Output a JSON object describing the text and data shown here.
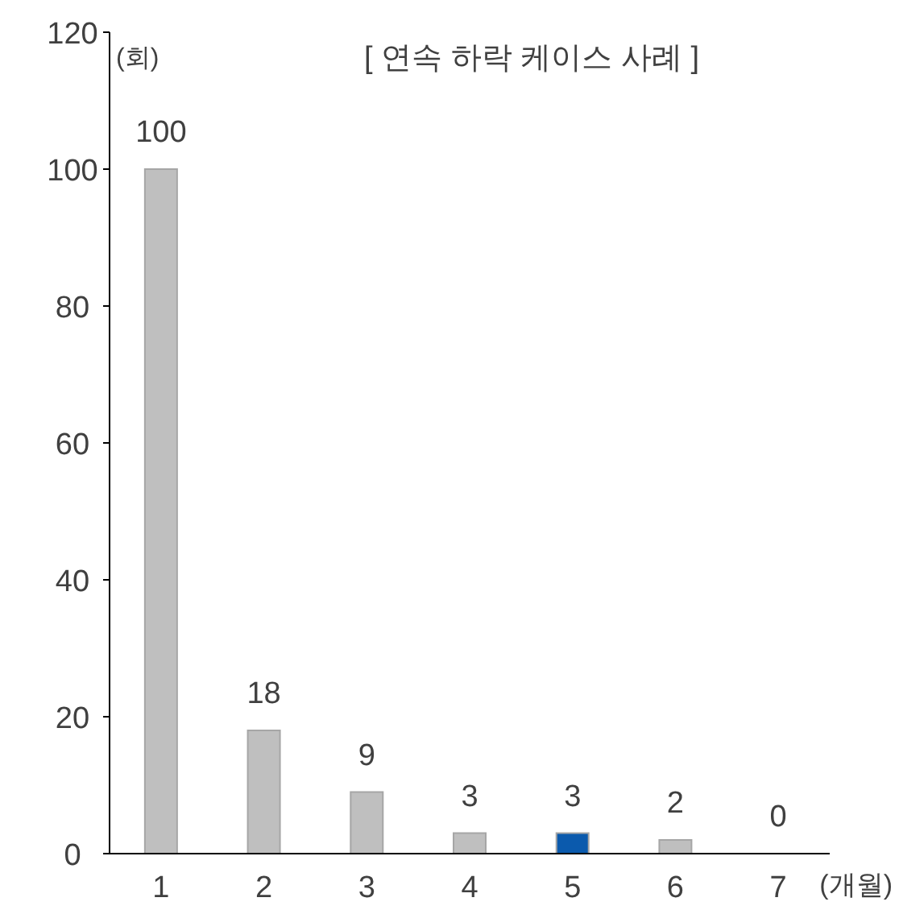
{
  "chart_data": {
    "type": "bar",
    "title": "[ 연속 하락 케이스 사례 ]",
    "ylabel": "(회)",
    "xlabel": "(개월)",
    "categories": [
      "1",
      "2",
      "3",
      "4",
      "5",
      "6",
      "7"
    ],
    "values": [
      100,
      18,
      9,
      3,
      3,
      2,
      0
    ],
    "colors": [
      "#bfbfbf",
      "#bfbfbf",
      "#bfbfbf",
      "#bfbfbf",
      "#0b5aad",
      "#bfbfbf",
      "#bfbfbf"
    ],
    "ylim": [
      0,
      120
    ],
    "yticks": [
      0,
      20,
      40,
      60,
      80,
      100,
      120
    ],
    "grid": false,
    "data_labels": true
  }
}
